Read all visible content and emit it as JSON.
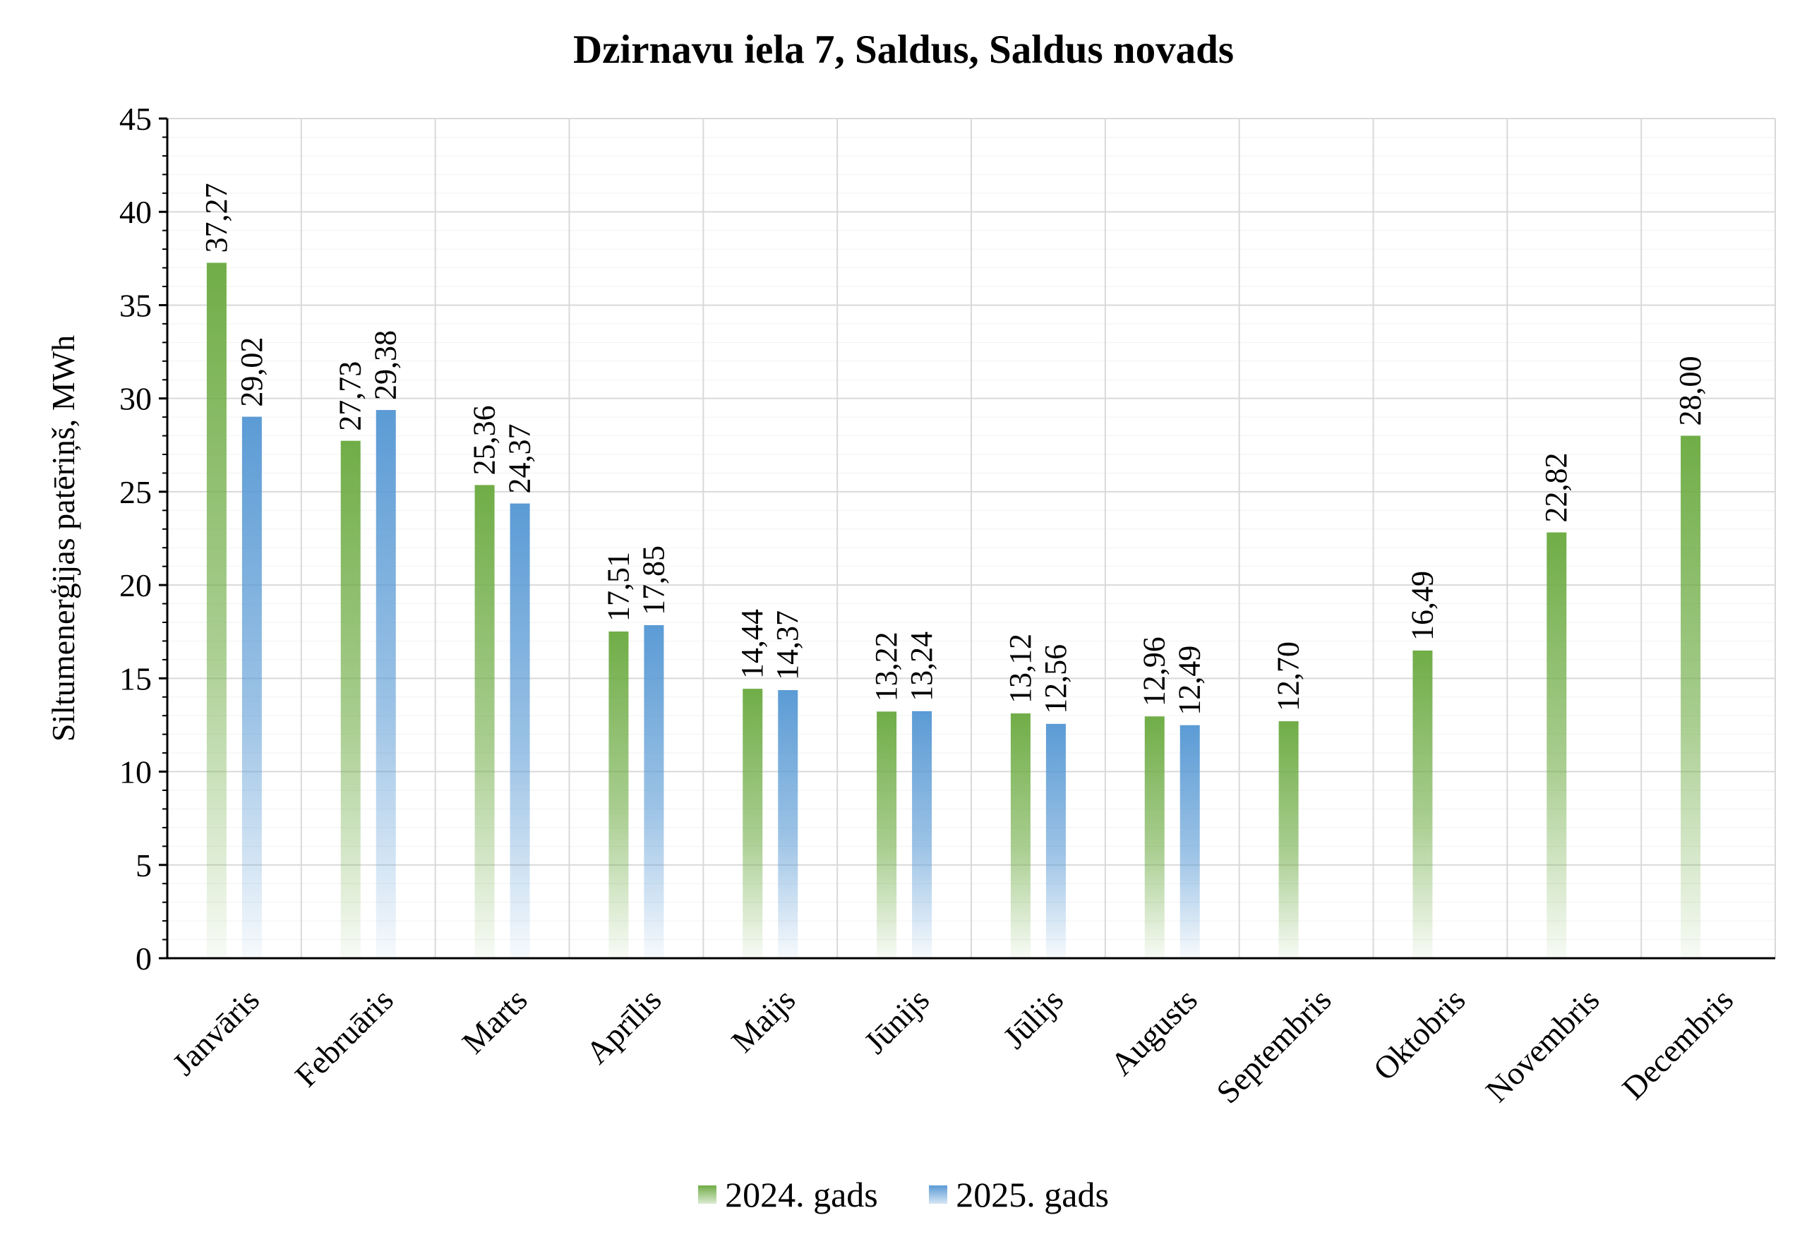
{
  "chart_data": {
    "type": "bar",
    "title": "Dzirnavu iela 7, Saldus, Saldus novads",
    "ylabel": "Siltumenerģijas patēriņš, MWh",
    "xlabel": "",
    "ylim": [
      0,
      45
    ],
    "yticks": [
      0,
      5,
      10,
      15,
      20,
      25,
      30,
      35,
      40,
      45
    ],
    "grid": true,
    "legend_position": "bottom",
    "categories": [
      "Janvāris",
      "Februāris",
      "Marts",
      "Aprīlis",
      "Maijs",
      "Jūnijs",
      "Jūlijs",
      "Augusts",
      "Septembris",
      "Oktobris",
      "Novembris",
      "Decembris"
    ],
    "series": [
      {
        "name": "2024. gads",
        "color": "#70AD47",
        "values": [
          37.27,
          27.73,
          25.36,
          17.51,
          14.44,
          13.22,
          13.12,
          12.96,
          12.7,
          16.49,
          22.82,
          28.0
        ],
        "labels": [
          "37,27",
          "27,73",
          "25,36",
          "17,51",
          "14,44",
          "13,22",
          "13,12",
          "12,96",
          "12,70",
          "16,49",
          "22,82",
          "28,00"
        ]
      },
      {
        "name": "2025. gads",
        "color": "#5B9BD5",
        "values": [
          29.02,
          29.38,
          24.37,
          17.85,
          14.37,
          13.24,
          12.56,
          12.49,
          null,
          null,
          null,
          null
        ],
        "labels": [
          "29,02",
          "29,38",
          "24,37",
          "17,85",
          "14,37",
          "13,24",
          "12,56",
          "12,49",
          null,
          null,
          null,
          null
        ]
      }
    ]
  }
}
